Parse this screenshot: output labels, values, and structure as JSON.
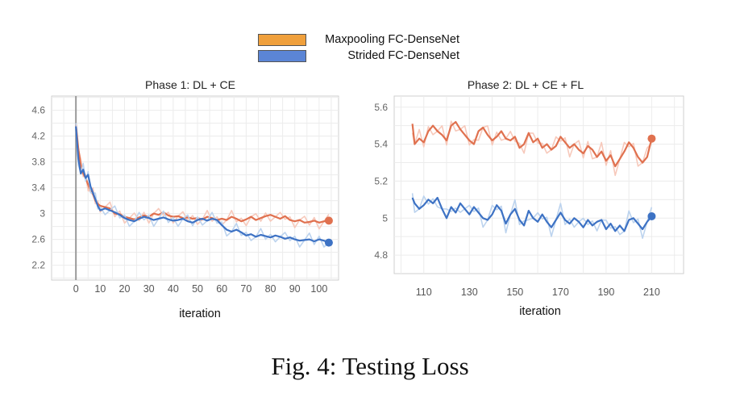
{
  "legend": [
    {
      "name": "Maxpooling FC-DenseNet",
      "color": "#f0a03c"
    },
    {
      "name": "Strided FC-DenseNet",
      "color": "#5b85d6"
    }
  ],
  "series_colors": {
    "maxpool_line": "#e0714f",
    "strided_line": "#3d72c4",
    "maxpool_raw": "#f7c9bb",
    "strided_raw": "#bcd3ee"
  },
  "caption": "Fig. 4: Testing Loss",
  "chart_data": [
    {
      "type": "line",
      "title": "Phase 1: DL + CE",
      "xlabel": "iteration",
      "ylabel": "",
      "xlim": [
        -10,
        108
      ],
      "ylim": [
        1.97,
        4.82
      ],
      "xticks": [
        0,
        10,
        20,
        30,
        40,
        50,
        60,
        70,
        80,
        90,
        100
      ],
      "yticks": [
        2.2,
        2.6,
        3,
        3.4,
        3.8,
        4.2,
        4.6
      ],
      "ytick_labels": [
        "2.2",
        "2.6",
        "3",
        "3.4",
        "3.8",
        "4.2",
        "4.6"
      ],
      "grid": true,
      "vertical_marker_x": 0,
      "series": [
        {
          "name": "Maxpooling FC-DenseNet",
          "x": [
            0,
            1,
            2,
            3,
            4,
            5,
            6,
            7,
            8,
            9,
            10,
            12,
            14,
            16,
            18,
            20,
            22,
            24,
            26,
            28,
            30,
            32,
            34,
            36,
            38,
            40,
            42,
            44,
            46,
            48,
            50,
            52,
            54,
            56,
            58,
            60,
            62,
            64,
            66,
            68,
            70,
            72,
            74,
            76,
            78,
            80,
            82,
            84,
            86,
            88,
            90,
            92,
            94,
            96,
            98,
            100,
            102,
            104
          ],
          "y": [
            4.38,
            4.0,
            3.75,
            3.62,
            3.55,
            3.45,
            3.35,
            3.3,
            3.2,
            3.15,
            3.12,
            3.1,
            3.08,
            3.0,
            2.99,
            2.95,
            2.93,
            2.91,
            2.94,
            2.97,
            2.95,
            3.0,
            2.98,
            3.02,
            2.97,
            2.95,
            2.96,
            2.93,
            2.94,
            2.92,
            2.93,
            2.91,
            2.95,
            2.93,
            2.9,
            2.92,
            2.9,
            2.95,
            2.92,
            2.88,
            2.91,
            2.95,
            2.9,
            2.93,
            2.96,
            2.98,
            2.95,
            2.92,
            2.96,
            2.9,
            2.88,
            2.9,
            2.86,
            2.87,
            2.89,
            2.86,
            2.88,
            2.89
          ]
        },
        {
          "name": "Strided FC-DenseNet",
          "x": [
            0,
            1,
            2,
            3,
            4,
            5,
            6,
            7,
            8,
            9,
            10,
            12,
            14,
            16,
            18,
            20,
            22,
            24,
            26,
            28,
            30,
            32,
            34,
            36,
            38,
            40,
            42,
            44,
            46,
            48,
            50,
            52,
            54,
            56,
            58,
            60,
            62,
            64,
            66,
            68,
            70,
            72,
            74,
            76,
            78,
            80,
            82,
            84,
            86,
            88,
            90,
            92,
            94,
            96,
            98,
            100,
            102,
            104
          ],
          "y": [
            4.35,
            3.85,
            3.62,
            3.68,
            3.55,
            3.6,
            3.42,
            3.32,
            3.22,
            3.12,
            3.05,
            3.08,
            3.05,
            3.02,
            2.98,
            2.93,
            2.9,
            2.88,
            2.92,
            2.95,
            2.93,
            2.9,
            2.92,
            2.94,
            2.91,
            2.89,
            2.9,
            2.92,
            2.88,
            2.86,
            2.9,
            2.92,
            2.89,
            2.92,
            2.9,
            2.82,
            2.75,
            2.72,
            2.75,
            2.71,
            2.66,
            2.68,
            2.64,
            2.67,
            2.65,
            2.63,
            2.66,
            2.64,
            2.61,
            2.63,
            2.6,
            2.58,
            2.59,
            2.6,
            2.57,
            2.6,
            2.58,
            2.55
          ]
        }
      ]
    },
    {
      "type": "line",
      "title": "Phase 2: DL + CE + FL",
      "xlabel": "iteration",
      "ylabel": "",
      "xlim": [
        97,
        224
      ],
      "ylim": [
        4.7,
        5.66
      ],
      "xticks": [
        110,
        130,
        150,
        170,
        190,
        210
      ],
      "yticks": [
        4.8,
        5,
        5.2,
        5.4,
        5.6
      ],
      "ytick_labels": [
        "4.8",
        "5",
        "5.2",
        "5.4",
        "5.6"
      ],
      "grid": true,
      "series": [
        {
          "name": "Maxpooling FC-DenseNet",
          "x": [
            105,
            106,
            108,
            110,
            112,
            114,
            116,
            118,
            120,
            122,
            124,
            126,
            128,
            130,
            132,
            134,
            136,
            138,
            140,
            142,
            144,
            146,
            148,
            150,
            152,
            154,
            156,
            158,
            160,
            162,
            164,
            166,
            168,
            170,
            172,
            174,
            176,
            178,
            180,
            182,
            184,
            186,
            188,
            190,
            192,
            194,
            196,
            198,
            200,
            202,
            204,
            206,
            208,
            210
          ],
          "y": [
            5.51,
            5.4,
            5.43,
            5.41,
            5.47,
            5.5,
            5.47,
            5.45,
            5.42,
            5.5,
            5.52,
            5.48,
            5.45,
            5.42,
            5.4,
            5.47,
            5.49,
            5.45,
            5.42,
            5.44,
            5.47,
            5.43,
            5.42,
            5.44,
            5.38,
            5.4,
            5.46,
            5.41,
            5.43,
            5.38,
            5.4,
            5.37,
            5.39,
            5.44,
            5.41,
            5.38,
            5.4,
            5.37,
            5.35,
            5.39,
            5.37,
            5.33,
            5.36,
            5.31,
            5.34,
            5.28,
            5.32,
            5.36,
            5.41,
            5.38,
            5.33,
            5.3,
            5.33,
            5.43
          ]
        },
        {
          "name": "Strided FC-DenseNet",
          "x": [
            105,
            106,
            108,
            110,
            112,
            114,
            116,
            118,
            120,
            122,
            124,
            126,
            128,
            130,
            132,
            134,
            136,
            138,
            140,
            142,
            144,
            146,
            148,
            150,
            152,
            154,
            156,
            158,
            160,
            162,
            164,
            166,
            168,
            170,
            172,
            174,
            176,
            178,
            180,
            182,
            184,
            186,
            188,
            190,
            192,
            194,
            196,
            198,
            200,
            202,
            204,
            206,
            208,
            210
          ],
          "y": [
            5.11,
            5.08,
            5.05,
            5.07,
            5.1,
            5.08,
            5.11,
            5.05,
            5.0,
            5.06,
            5.03,
            5.08,
            5.05,
            5.02,
            5.06,
            5.03,
            5.0,
            4.99,
            5.02,
            5.07,
            5.04,
            4.97,
            5.02,
            5.05,
            4.99,
            4.96,
            5.04,
            5.0,
            4.98,
            5.02,
            4.98,
            4.95,
            4.99,
            5.03,
            4.99,
            4.97,
            5.0,
            4.98,
            4.95,
            4.99,
            4.96,
            4.98,
            4.99,
            4.94,
            4.97,
            4.93,
            4.96,
            4.93,
            4.99,
            5.0,
            4.97,
            4.94,
            4.98,
            5.01
          ]
        }
      ]
    }
  ]
}
